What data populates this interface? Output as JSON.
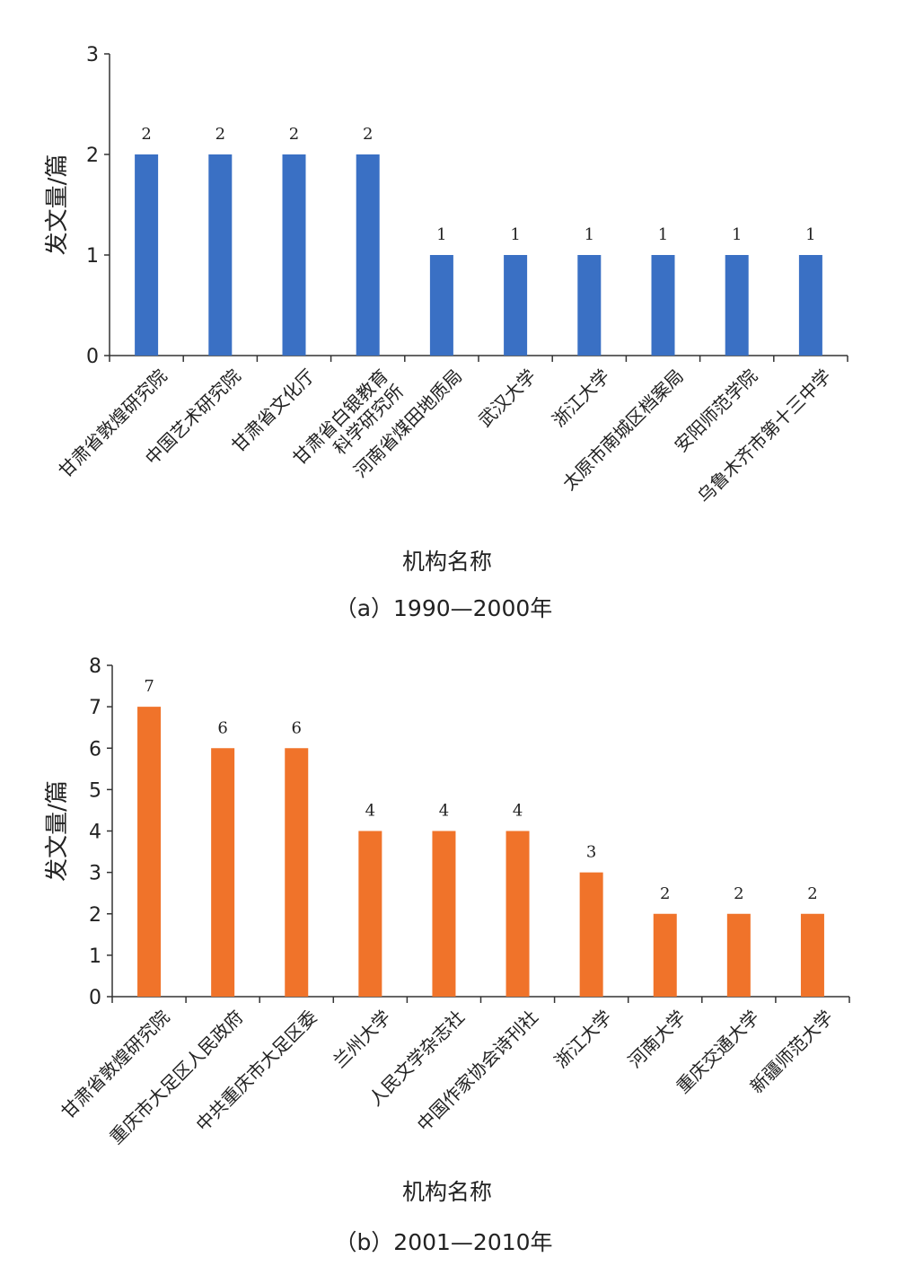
{
  "chart_data": [
    {
      "type": "bar",
      "caption": "（a）1990—2000年",
      "xlabel": "机构名称",
      "ylabel": "发文量/篇",
      "ylim": [
        0,
        3
      ],
      "yticks": [
        "0",
        "1",
        "2",
        "3"
      ],
      "color": "#3a70c4",
      "categories": [
        [
          "甘肃省敦煌研究院"
        ],
        [
          "中国艺术研究院"
        ],
        [
          "甘肃省文化厅"
        ],
        [
          "甘肃省白银教育",
          "科学研究所"
        ],
        [
          "河南省煤田地质局"
        ],
        [
          "武汉大学"
        ],
        [
          "浙江大学"
        ],
        [
          "太原市南城区档案局"
        ],
        [
          "安阳师范学院"
        ],
        [
          "乌鲁木齐市第十三中学"
        ]
      ],
      "values": [
        2,
        2,
        2,
        2,
        1,
        1,
        1,
        1,
        1,
        1
      ]
    },
    {
      "type": "bar",
      "caption": "（b）2001—2010年",
      "xlabel": "机构名称",
      "ylabel": "发文量/篇",
      "ylim": [
        0,
        8
      ],
      "yticks": [
        "0",
        "1",
        "2",
        "3",
        "4",
        "5",
        "6",
        "7",
        "8"
      ],
      "color": "#f0732a",
      "categories": [
        [
          "甘肃省敦煌研究院"
        ],
        [
          "重庆市大足区人民政府"
        ],
        [
          "中共重庆市大足区委"
        ],
        [
          "兰州大学"
        ],
        [
          "人民文学杂志社"
        ],
        [
          "中国作家协会诗刊社"
        ],
        [
          "浙江大学"
        ],
        [
          "河南大学"
        ],
        [
          "重庆交通大学"
        ],
        [
          "新疆师范大学"
        ]
      ],
      "values": [
        7,
        6,
        6,
        4,
        4,
        4,
        3,
        2,
        2,
        2
      ]
    }
  ]
}
